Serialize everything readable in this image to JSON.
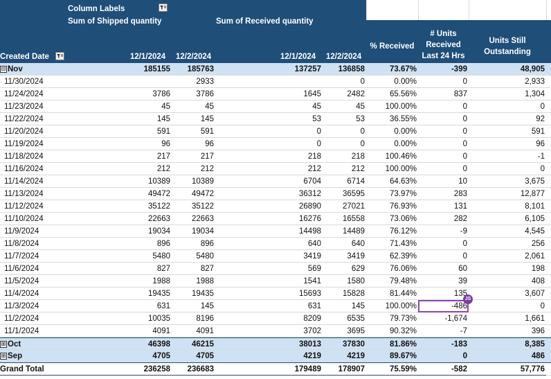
{
  "header": {
    "column_labels": "Column Labels",
    "sum_shipped": "Sum of Shipped quantity",
    "sum_received": "Sum of Received quantity",
    "pct_received": "% Received",
    "units_received_24": "# Units Received Last 24 Hrs",
    "units_outstanding": "Units Still Outstanding",
    "created_date": "Created Date",
    "ship_d1": "12/1/2024",
    "ship_d2": "12/2/2024",
    "recv_d1": "12/1/2024",
    "recv_d2": "12/2/2024"
  },
  "nov": {
    "label": "Nov",
    "expander": "⊟",
    "s1": "185155",
    "s2": "185763",
    "r1": "137257",
    "r2": "136858",
    "pct": "73.67%",
    "u24": "-399",
    "out": "48,905"
  },
  "rows": [
    {
      "date": "11/30/2024",
      "s1": "",
      "s2": "2933",
      "r1": "",
      "r2": "0",
      "pct": "0.00%",
      "u24": "0",
      "out": "2,933"
    },
    {
      "date": "11/24/2024",
      "s1": "3786",
      "s2": "3786",
      "r1": "1645",
      "r2": "2482",
      "pct": "65.56%",
      "u24": "837",
      "out": "1,304"
    },
    {
      "date": "11/23/2024",
      "s1": "45",
      "s2": "45",
      "r1": "45",
      "r2": "45",
      "pct": "100.00%",
      "u24": "0",
      "out": "0"
    },
    {
      "date": "11/22/2024",
      "s1": "145",
      "s2": "145",
      "r1": "53",
      "r2": "53",
      "pct": "36.55%",
      "u24": "0",
      "out": "92"
    },
    {
      "date": "11/20/2024",
      "s1": "591",
      "s2": "591",
      "r1": "0",
      "r2": "0",
      "pct": "0.00%",
      "u24": "0",
      "out": "591"
    },
    {
      "date": "11/19/2024",
      "s1": "96",
      "s2": "96",
      "r1": "0",
      "r2": "0",
      "pct": "0.00%",
      "u24": "0",
      "out": "96"
    },
    {
      "date": "11/18/2024",
      "s1": "217",
      "s2": "217",
      "r1": "218",
      "r2": "218",
      "pct": "100.46%",
      "u24": "0",
      "out": "-1"
    },
    {
      "date": "11/16/2024",
      "s1": "212",
      "s2": "212",
      "r1": "212",
      "r2": "212",
      "pct": "100.00%",
      "u24": "0",
      "out": "0"
    },
    {
      "date": "11/14/2024",
      "s1": "10389",
      "s2": "10389",
      "r1": "6704",
      "r2": "6714",
      "pct": "64.63%",
      "u24": "10",
      "out": "3,675"
    },
    {
      "date": "11/13/2024",
      "s1": "49472",
      "s2": "49472",
      "r1": "36312",
      "r2": "36595",
      "pct": "73.97%",
      "u24": "283",
      "out": "12,877"
    },
    {
      "date": "11/12/2024",
      "s1": "35122",
      "s2": "35122",
      "r1": "26890",
      "r2": "27021",
      "pct": "76.93%",
      "u24": "131",
      "out": "8,101"
    },
    {
      "date": "11/10/2024",
      "s1": "22663",
      "s2": "22663",
      "r1": "16276",
      "r2": "16558",
      "pct": "73.06%",
      "u24": "282",
      "out": "6,105"
    },
    {
      "date": "11/9/2024",
      "s1": "19034",
      "s2": "19034",
      "r1": "14498",
      "r2": "14489",
      "pct": "76.12%",
      "u24": "-9",
      "out": "4,545"
    },
    {
      "date": "11/8/2024",
      "s1": "896",
      "s2": "896",
      "r1": "640",
      "r2": "640",
      "pct": "71.43%",
      "u24": "0",
      "out": "256"
    },
    {
      "date": "11/7/2024",
      "s1": "5480",
      "s2": "5480",
      "r1": "3419",
      "r2": "3419",
      "pct": "62.39%",
      "u24": "0",
      "out": "2,061"
    },
    {
      "date": "11/6/2024",
      "s1": "827",
      "s2": "827",
      "r1": "569",
      "r2": "629",
      "pct": "76.06%",
      "u24": "60",
      "out": "198"
    },
    {
      "date": "11/5/2024",
      "s1": "1988",
      "s2": "1988",
      "r1": "1541",
      "r2": "1580",
      "pct": "79.48%",
      "u24": "39",
      "out": "408"
    },
    {
      "date": "11/4/2024",
      "s1": "19435",
      "s2": "19435",
      "r1": "15693",
      "r2": "15828",
      "pct": "81.44%",
      "u24": "135",
      "out": "3,607"
    },
    {
      "date": "11/3/2024",
      "s1": "631",
      "s2": "145",
      "r1": "631",
      "r2": "145",
      "pct": "100.00%",
      "u24": "-486",
      "out": "0"
    },
    {
      "date": "11/2/2024",
      "s1": "10035",
      "s2": "8196",
      "r1": "8209",
      "r2": "6535",
      "pct": "79.73%",
      "u24": "-1,674",
      "out": "1,661"
    },
    {
      "date": "11/1/2024",
      "s1": "4091",
      "s2": "4091",
      "r1": "3702",
      "r2": "3695",
      "pct": "90.32%",
      "u24": "-7",
      "out": "396"
    }
  ],
  "oct": {
    "label": "Oct",
    "expander": "⊞",
    "s1": "46398",
    "s2": "46215",
    "r1": "38013",
    "r2": "37830",
    "pct": "81.86%",
    "u24": "-183",
    "out": "8,385"
  },
  "sep": {
    "label": "Sep",
    "expander": "⊞",
    "s1": "4705",
    "s2": "4705",
    "r1": "4219",
    "r2": "4219",
    "pct": "89.67%",
    "u24": "0",
    "out": "486"
  },
  "grand": {
    "label": "Grand Total",
    "s1": "236258",
    "s2": "236683",
    "r1": "179489",
    "r2": "178907",
    "pct": "75.59%",
    "u24": "-582",
    "out": "57,776"
  },
  "comment": {
    "initials": "JS"
  },
  "colors": {
    "header": "#1f4e79",
    "subtotal": "#cfe2f3",
    "grid": "#d9d9d9",
    "selection": "#8e44ad"
  }
}
